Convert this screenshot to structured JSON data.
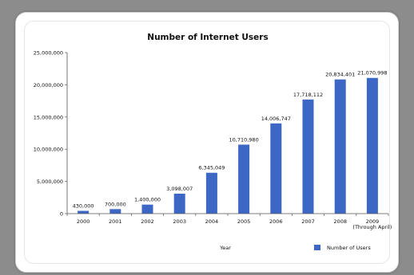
{
  "chart_data": {
    "type": "bar",
    "title": "Number of Internet Users",
    "xlabel": "Year",
    "ylabel": "",
    "categories": [
      "2000",
      "2001",
      "2002",
      "2003",
      "2004",
      "2005",
      "2006",
      "2007",
      "2008",
      "2009"
    ],
    "category_sublabels": [
      "",
      "",
      "",
      "",
      "",
      "",
      "",
      "",
      "",
      "(Through April)"
    ],
    "series": [
      {
        "name": "Number of Users",
        "values": [
          430000,
          700000,
          1400000,
          3098007,
          6345049,
          10710980,
          14006747,
          17718112,
          20834401,
          21070998
        ]
      }
    ],
    "value_labels": [
      "430,000",
      "700,000",
      "1,400,000",
      "3,098,007",
      "6,345,049",
      "10,710,980",
      "14,006,747",
      "17,718,112",
      "20,834,401",
      "21,070,998"
    ],
    "ylim": [
      0,
      25000000
    ],
    "yticks": [
      0,
      5000000,
      10000000,
      15000000,
      20000000,
      25000000
    ],
    "ytick_labels": [
      "0",
      "5,000,000",
      "10,000,000",
      "15,000,000",
      "20,000,000",
      "25,000,000"
    ],
    "grid": false,
    "legend_position": "bottom-right",
    "bar_color": "#3d67c5",
    "background_color": "#8c8c8c"
  }
}
